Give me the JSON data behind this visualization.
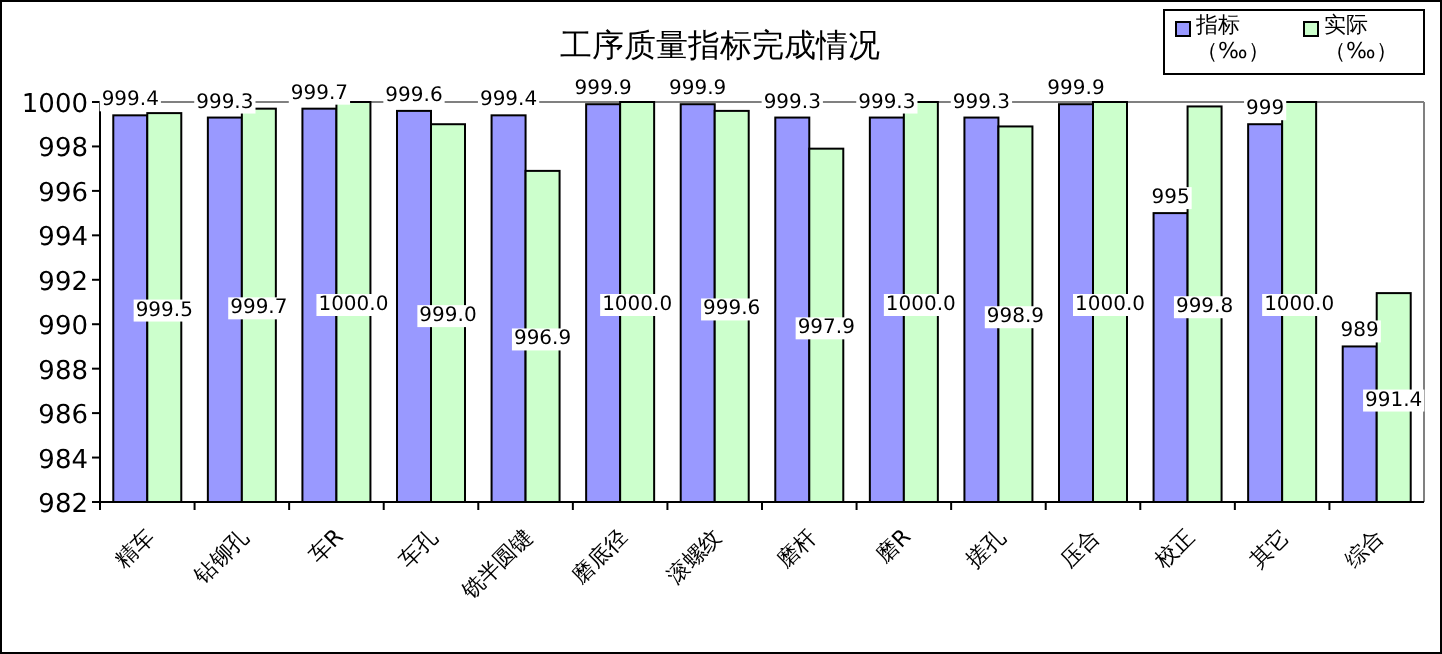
{
  "chart_data": {
    "type": "bar",
    "title": "工序质量指标完成情况",
    "categories": [
      "精车",
      "钻铆孔",
      "车R",
      "车孔",
      "铣半圆键",
      "磨底径",
      "滚螺纹",
      "磨杆",
      "磨R",
      "搓孔",
      "压合",
      "校正",
      "其它",
      "综合"
    ],
    "series": [
      {
        "name": "指标（‰）",
        "color": "#9999ff",
        "values": [
          999.4,
          999.3,
          999.7,
          999.6,
          999.4,
          999.9,
          999.9,
          999.3,
          999.3,
          999.3,
          999.9,
          995,
          999,
          989
        ],
        "value_labels": [
          "999.4",
          "999.3",
          "999.7",
          "999.6",
          "999.4",
          "999.9",
          "999.9",
          "999.3",
          "999.3",
          "999.3",
          "999.9",
          "995",
          "999",
          "989"
        ]
      },
      {
        "name": "实际（‰）",
        "color": "#ccffcc",
        "values": [
          999.5,
          999.7,
          1000.0,
          999.0,
          996.9,
          1000.0,
          999.6,
          997.9,
          1000.0,
          998.9,
          1000.0,
          999.8,
          1000.0,
          991.4
        ],
        "value_labels": [
          "999.5",
          "999.7",
          "1000.0",
          "999.0",
          "996.9",
          "1000.0",
          "999.6",
          "997.9",
          "1000.0",
          "998.9",
          "1000.0",
          "999.8",
          "1000.0",
          "991.4"
        ]
      }
    ],
    "ylim": [
      982,
      1000
    ],
    "yticks": [
      982,
      984,
      986,
      988,
      990,
      992,
      994,
      996,
      998,
      1000
    ],
    "grid": false,
    "legend": "top right"
  }
}
